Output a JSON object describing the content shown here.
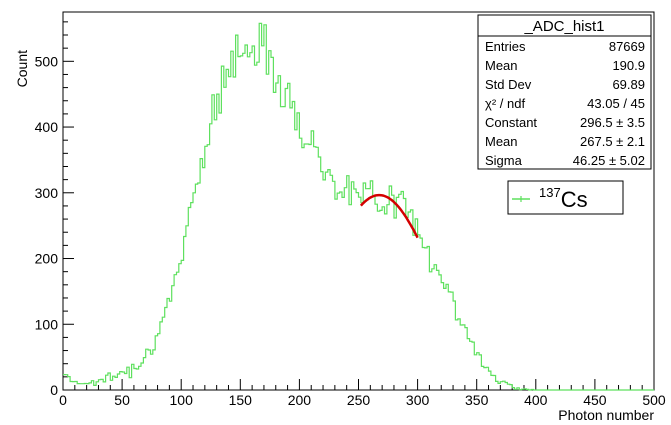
{
  "chart_data": {
    "type": "histogram",
    "xlabel": "Photon number",
    "ylabel": "Count",
    "xlim": [
      0,
      500
    ],
    "ylim": [
      0,
      575
    ],
    "x_ticks": [
      "0",
      "50",
      "100",
      "150",
      "200",
      "250",
      "300",
      "350",
      "400",
      "450",
      "500"
    ],
    "y_ticks": [
      "0",
      "100",
      "200",
      "300",
      "400",
      "500"
    ],
    "x_tick_values": [
      0,
      50,
      100,
      150,
      200,
      250,
      300,
      350,
      400,
      450,
      500
    ],
    "y_tick_values": [
      0,
      100,
      200,
      300,
      400,
      500
    ],
    "bin_width": 2,
    "histogram_envelope": [
      [
        0,
        30
      ],
      [
        4,
        22
      ],
      [
        8,
        14
      ],
      [
        15,
        10
      ],
      [
        25,
        12
      ],
      [
        35,
        16
      ],
      [
        45,
        22
      ],
      [
        55,
        30
      ],
      [
        65,
        45
      ],
      [
        75,
        65
      ],
      [
        85,
        100
      ],
      [
        92,
        140
      ],
      [
        98,
        190
      ],
      [
        104,
        245
      ],
      [
        110,
        300
      ],
      [
        116,
        345
      ],
      [
        122,
        385
      ],
      [
        128,
        420
      ],
      [
        134,
        455
      ],
      [
        140,
        485
      ],
      [
        146,
        505
      ],
      [
        152,
        520
      ],
      [
        158,
        528
      ],
      [
        164,
        530
      ],
      [
        170,
        522
      ],
      [
        176,
        505
      ],
      [
        182,
        485
      ],
      [
        188,
        460
      ],
      [
        194,
        432
      ],
      [
        200,
        405
      ],
      [
        206,
        383
      ],
      [
        212,
        365
      ],
      [
        218,
        348
      ],
      [
        224,
        333
      ],
      [
        230,
        322
      ],
      [
        236,
        312
      ],
      [
        242,
        304
      ],
      [
        248,
        298
      ],
      [
        254,
        295
      ],
      [
        260,
        296
      ],
      [
        266,
        297
      ],
      [
        272,
        296
      ],
      [
        278,
        292
      ],
      [
        284,
        285
      ],
      [
        290,
        272
      ],
      [
        296,
        256
      ],
      [
        302,
        238
      ],
      [
        308,
        218
      ],
      [
        314,
        196
      ],
      [
        320,
        172
      ],
      [
        326,
        148
      ],
      [
        332,
        122
      ],
      [
        338,
        98
      ],
      [
        344,
        76
      ],
      [
        350,
        56
      ],
      [
        356,
        40
      ],
      [
        362,
        27
      ],
      [
        368,
        17
      ],
      [
        374,
        10
      ],
      [
        380,
        5
      ],
      [
        386,
        2
      ],
      [
        392,
        1
      ],
      [
        398,
        0
      ],
      [
        500,
        0
      ]
    ],
    "series": [
      {
        "name": "137Cs",
        "color": "#5ee05e",
        "style": "histogram"
      }
    ],
    "fit": {
      "color": "#d40000",
      "function": "gaus",
      "constant": 296.5,
      "mean": 267.5,
      "sigma": 46.25,
      "x_range": [
        252,
        300
      ]
    },
    "stats_box": {
      "title": "_ADC_hist1",
      "rows": [
        {
          "label": "Entries",
          "value": "87669"
        },
        {
          "label": "Mean",
          "value": "190.9"
        },
        {
          "label": "Std Dev",
          "value": "69.89"
        },
        {
          "label": "χ² / ndf",
          "value": "43.05 / 45"
        },
        {
          "label": "Constant",
          "value": "296.5 ± 3.5"
        },
        {
          "label": "Mean",
          "value": "267.5 ± 2.1"
        },
        {
          "label": "Sigma",
          "value": "46.25 ± 5.02"
        }
      ]
    },
    "legend": {
      "placement": "top-right",
      "mass_number": "137",
      "element": "Cs"
    }
  }
}
